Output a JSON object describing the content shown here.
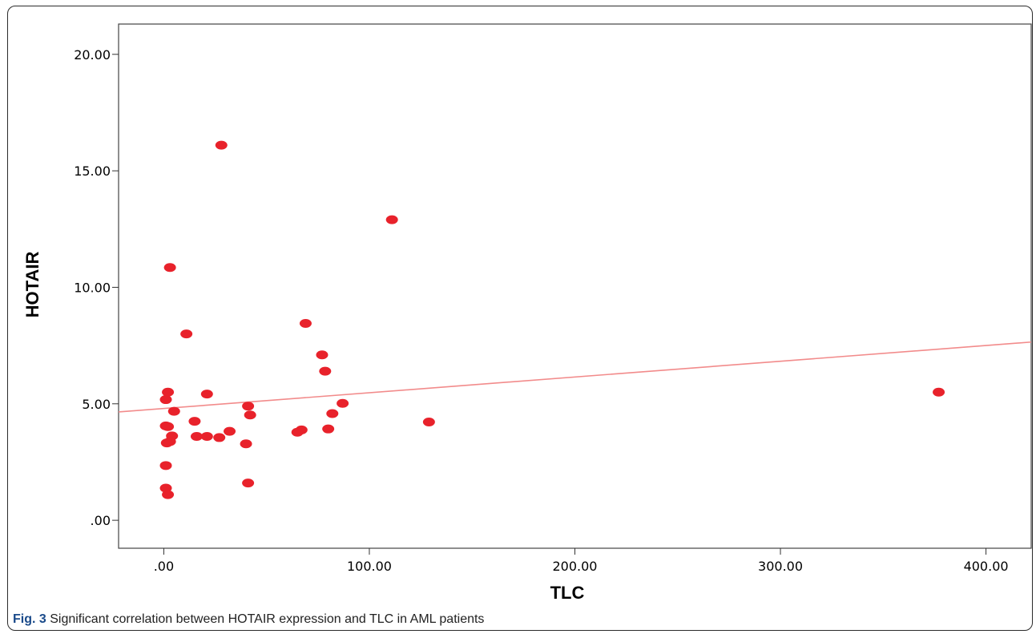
{
  "chart_data": {
    "type": "scatter",
    "xlabel": "TLC",
    "ylabel": "HOTAIR",
    "xlim": [
      -22,
      422
    ],
    "ylim": [
      -1.2,
      21.3
    ],
    "x_ticks": [
      0,
      100,
      200,
      300,
      400
    ],
    "x_tick_labels": [
      ".00",
      "100.00",
      "200.00",
      "300.00",
      "400.00"
    ],
    "y_ticks": [
      0,
      5,
      10,
      15,
      20
    ],
    "y_tick_labels": [
      ".00",
      "5.00",
      "10.00",
      "15.00",
      "20.00"
    ],
    "grid": false,
    "marker_color": "#e8222b",
    "fit_line": {
      "type": "linear",
      "x": [
        -22,
        422
      ],
      "y": [
        4.65,
        7.65
      ],
      "color": "#f28b8b"
    },
    "points": [
      {
        "x": 28,
        "y": 16.1
      },
      {
        "x": 111,
        "y": 12.9
      },
      {
        "x": 3,
        "y": 10.85
      },
      {
        "x": 69,
        "y": 8.45
      },
      {
        "x": 11,
        "y": 8.0
      },
      {
        "x": 77,
        "y": 7.1
      },
      {
        "x": 78.5,
        "y": 6.4
      },
      {
        "x": 2,
        "y": 5.5
      },
      {
        "x": 377,
        "y": 5.5
      },
      {
        "x": 21,
        "y": 5.42
      },
      {
        "x": 1,
        "y": 5.18
      },
      {
        "x": 87,
        "y": 5.02
      },
      {
        "x": 41,
        "y": 4.9
      },
      {
        "x": 5,
        "y": 4.68
      },
      {
        "x": 82,
        "y": 4.58
      },
      {
        "x": 42,
        "y": 4.52
      },
      {
        "x": 15,
        "y": 4.25
      },
      {
        "x": 129,
        "y": 4.22
      },
      {
        "x": 1,
        "y": 4.05
      },
      {
        "x": 2,
        "y": 4.02
      },
      {
        "x": 80,
        "y": 3.92
      },
      {
        "x": 67,
        "y": 3.88
      },
      {
        "x": 32,
        "y": 3.82
      },
      {
        "x": 65,
        "y": 3.78
      },
      {
        "x": 4,
        "y": 3.62
      },
      {
        "x": 16,
        "y": 3.6
      },
      {
        "x": 21,
        "y": 3.6
      },
      {
        "x": 27,
        "y": 3.55
      },
      {
        "x": 3,
        "y": 3.38
      },
      {
        "x": 1.5,
        "y": 3.32
      },
      {
        "x": 40,
        "y": 3.28
      },
      {
        "x": 1,
        "y": 2.35
      },
      {
        "x": 41,
        "y": 1.6
      },
      {
        "x": 1,
        "y": 1.38
      },
      {
        "x": 2,
        "y": 1.1
      }
    ]
  },
  "caption": {
    "label": "Fig. 3",
    "text": " Significant correlation between HOTAIR expression and TLC in AML patients"
  }
}
